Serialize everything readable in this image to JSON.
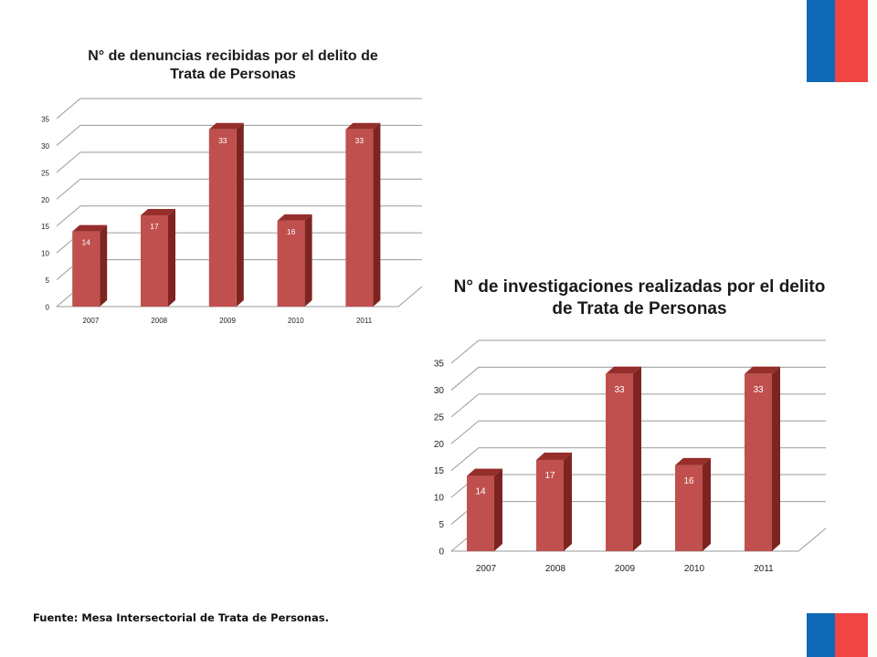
{
  "colors": {
    "flag_blue": "#0f69b4",
    "flag_red": "#ef4545",
    "bar_front": "#c0504d",
    "bar_side": "#7d2421",
    "bar_top": "#962e2b",
    "grid": "#9a9a9a"
  },
  "footer": {
    "source": "Fuente: Mesa Intersectorial de Trata de Personas."
  },
  "chart_data": [
    {
      "type": "bar",
      "title": "N° de denuncias recibidas por el delito de\nTrata de Personas",
      "categories": [
        "2007",
        "2008",
        "2009",
        "2010",
        "2011"
      ],
      "values": [
        14,
        17,
        33,
        16,
        33
      ],
      "data_labels": [
        "14",
        "17",
        "33",
        "16",
        "33"
      ],
      "yticks": [
        "0",
        "5",
        "10",
        "15",
        "20",
        "25",
        "30",
        "35"
      ],
      "ylim": [
        0,
        35
      ],
      "grid": true,
      "legend": "none",
      "style": "3d-column"
    },
    {
      "type": "bar",
      "title": "N° de investigaciones realizadas por el delito\nde Trata de Personas",
      "categories": [
        "2007",
        "2008",
        "2009",
        "2010",
        "2011"
      ],
      "values": [
        14,
        17,
        33,
        16,
        33
      ],
      "data_labels": [
        "14",
        "17",
        "33",
        "16",
        "33"
      ],
      "yticks": [
        "0",
        "5",
        "10",
        "15",
        "20",
        "25",
        "30",
        "35"
      ],
      "ylim": [
        0,
        35
      ],
      "grid": true,
      "legend": "none",
      "style": "3d-column"
    }
  ]
}
